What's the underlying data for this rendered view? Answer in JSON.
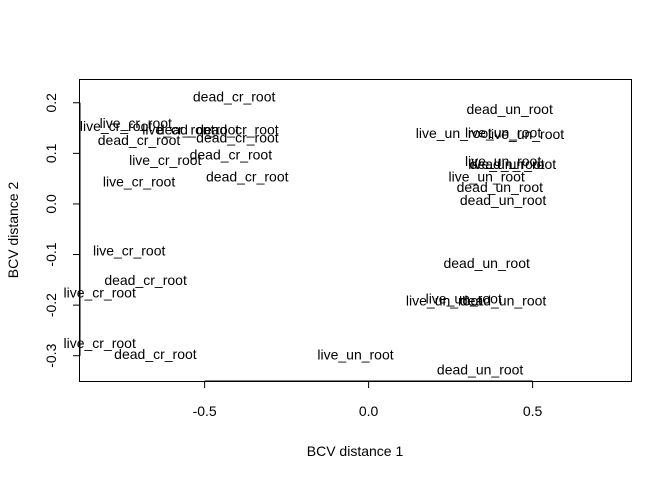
{
  "chart_data": {
    "type": "scatter",
    "title": "",
    "xlabel": "BCV distance 1",
    "ylabel": "BCV distance 2",
    "xlim": [
      -0.88,
      0.8
    ],
    "ylim": [
      -0.35,
      0.245
    ],
    "xticks": [
      -0.5,
      0.0,
      0.5
    ],
    "xtick_labels": [
      "-0.5",
      "0.0",
      "0.5"
    ],
    "yticks": [
      -0.3,
      -0.2,
      -0.1,
      0.0,
      0.1,
      0.2
    ],
    "ytick_labels": [
      "-0.3",
      "-0.2",
      "-0.1",
      "0.0",
      "0.1",
      "0.2"
    ],
    "grid": false,
    "legend": "none",
    "marker": "text-label",
    "points": [
      {
        "x": -0.41,
        "y": 0.212,
        "label": "dead_cr_root"
      },
      {
        "x": -0.71,
        "y": 0.16,
        "label": "live_cr_root"
      },
      {
        "x": -0.77,
        "y": 0.154,
        "label": "live_cr_root"
      },
      {
        "x": -0.58,
        "y": 0.147,
        "label": "live_cr_root"
      },
      {
        "x": -0.52,
        "y": 0.147,
        "label": "dead_cr_root"
      },
      {
        "x": -0.4,
        "y": 0.147,
        "label": "dead_cr_root"
      },
      {
        "x": -0.7,
        "y": 0.126,
        "label": "dead_cr_root"
      },
      {
        "x": -0.4,
        "y": 0.131,
        "label": "dead_cr_root"
      },
      {
        "x": -0.42,
        "y": 0.098,
        "label": "dead_cr_root"
      },
      {
        "x": -0.62,
        "y": 0.087,
        "label": "live_cr_root"
      },
      {
        "x": -0.37,
        "y": 0.054,
        "label": "dead_cr_root"
      },
      {
        "x": -0.7,
        "y": 0.044,
        "label": "live_cr_root"
      },
      {
        "x": 0.43,
        "y": 0.188,
        "label": "dead_un_root"
      },
      {
        "x": 0.26,
        "y": 0.14,
        "label": "live_un_root"
      },
      {
        "x": 0.41,
        "y": 0.141,
        "label": "live_un_root"
      },
      {
        "x": 0.48,
        "y": 0.138,
        "label": "live_un_root"
      },
      {
        "x": 0.41,
        "y": 0.085,
        "label": "live_un_root"
      },
      {
        "x": 0.42,
        "y": 0.079,
        "label": "live_un_root"
      },
      {
        "x": 0.44,
        "y": 0.079,
        "label": "dead_un_root"
      },
      {
        "x": 0.36,
        "y": 0.054,
        "label": "live_un_root"
      },
      {
        "x": 0.4,
        "y": 0.033,
        "label": "dead_un_root"
      },
      {
        "x": 0.41,
        "y": 0.008,
        "label": "dead_un_root"
      },
      {
        "x": -0.73,
        "y": -0.092,
        "label": "live_cr_root"
      },
      {
        "x": -0.68,
        "y": -0.15,
        "label": "dead_cr_root"
      },
      {
        "x": -0.82,
        "y": -0.175,
        "label": "live_cr_root"
      },
      {
        "x": 0.36,
        "y": -0.117,
        "label": "dead_un_root"
      },
      {
        "x": 0.29,
        "y": -0.187,
        "label": "live_un_root"
      },
      {
        "x": 0.23,
        "y": -0.191,
        "label": "live_un_root"
      },
      {
        "x": 0.41,
        "y": -0.191,
        "label": "dead_un_root"
      },
      {
        "x": -0.82,
        "y": -0.275,
        "label": "live_cr_root"
      },
      {
        "x": -0.65,
        "y": -0.297,
        "label": "dead_cr_root"
      },
      {
        "x": -0.04,
        "y": -0.298,
        "label": "live_un_root"
      },
      {
        "x": 0.34,
        "y": -0.327,
        "label": "dead_un_root"
      }
    ]
  }
}
